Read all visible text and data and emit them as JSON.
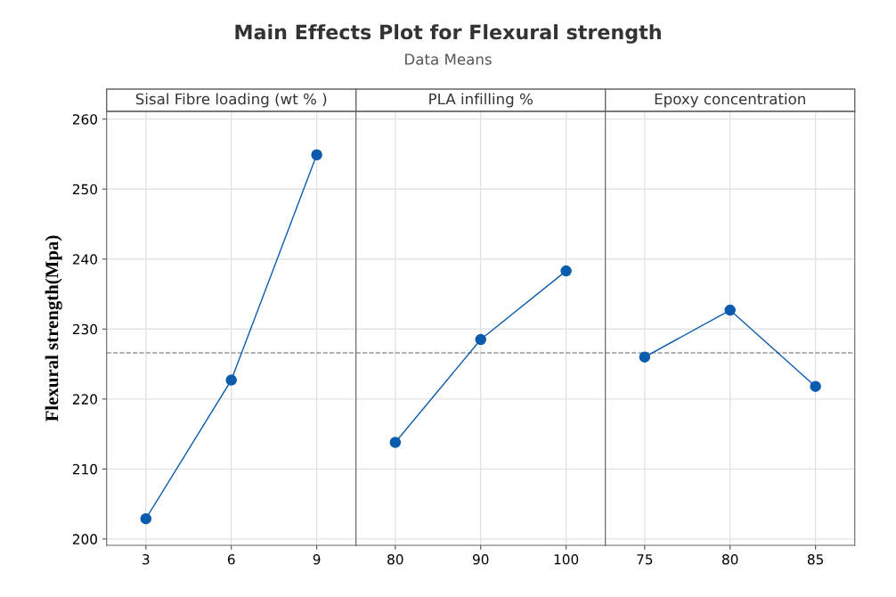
{
  "chart_data": [
    {
      "type": "line",
      "xlabel": "Sisal Fibre loading (wt % )",
      "ylabel": "Flexural strength(Mpa)",
      "categories": [
        "3",
        "6",
        "9"
      ],
      "series": [
        {
          "color": "#0b5cad",
          "values": [
            202.9,
            222.7,
            254.9
          ]
        }
      ],
      "ylim": [
        199.1,
        261.1
      ],
      "yticks": [
        200,
        210,
        220,
        230,
        240,
        250,
        260
      ],
      "grid": true,
      "marker": "circle",
      "line_style": "solid",
      "ref_lines": [
        {
          "axis": "y",
          "value": 226.6,
          "color": "#999999",
          "line_style": "dashed"
        }
      ]
    },
    {
      "type": "line",
      "title": "Main Effects Plot for Flexural strength",
      "subtitle": "Data Means",
      "xlabel": "PLA infilling %",
      "categories": [
        "80",
        "90",
        "100"
      ],
      "series": [
        {
          "color": "#0b5cad",
          "values": [
            213.8,
            228.5,
            238.3
          ]
        }
      ],
      "ylim": [
        199.1,
        261.1
      ],
      "yticks": [
        200,
        210,
        220,
        230,
        240,
        250,
        260
      ],
      "tick_labels": "x",
      "grid": true,
      "marker": "circle",
      "line_style": "solid",
      "ref_lines": [
        {
          "axis": "y",
          "value": 226.6,
          "color": "#999999",
          "line_style": "dashed"
        }
      ]
    },
    {
      "type": "line",
      "xlabel": "Epoxy concentration",
      "categories": [
        "75",
        "80",
        "85"
      ],
      "series": [
        {
          "color": "#0b5cad",
          "values": [
            226.0,
            232.7,
            221.8
          ]
        }
      ],
      "ylim": [
        199.1,
        261.1
      ],
      "yticks": [
        200,
        210,
        220,
        230,
        240,
        250,
        260
      ],
      "tick_labels": "x",
      "grid": true,
      "marker": "circle",
      "line_style": "solid",
      "ref_lines": [
        {
          "axis": "y",
          "value": 226.6,
          "color": "#999999",
          "line_style": "dashed"
        }
      ]
    }
  ]
}
